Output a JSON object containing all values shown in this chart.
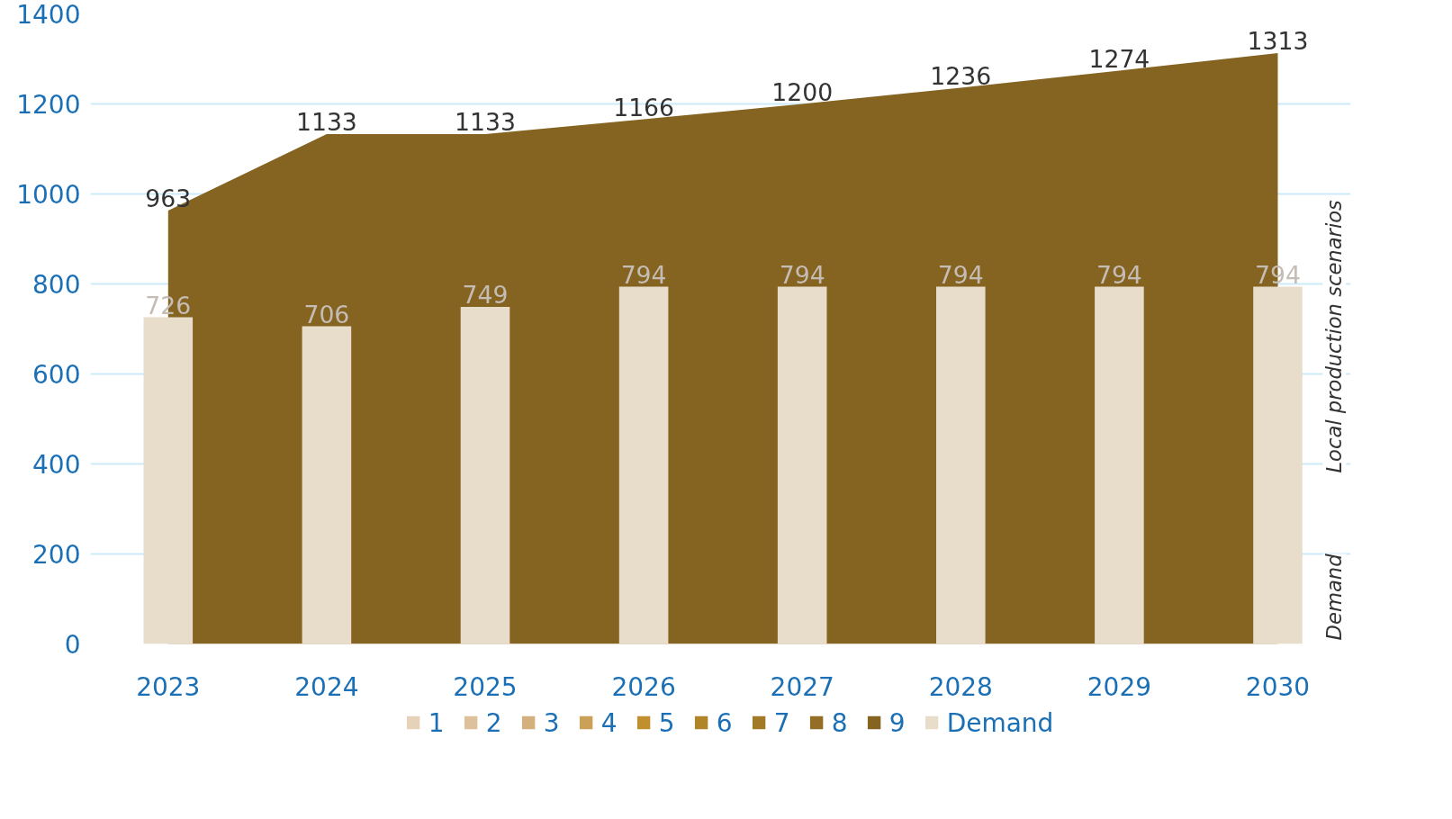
{
  "chart_data": {
    "type": "area",
    "categories": [
      "2023",
      "2024",
      "2025",
      "2026",
      "2027",
      "2028",
      "2029",
      "2030"
    ],
    "series": [
      {
        "name": "1",
        "color": "#e6d2b9",
        "values": [
          null,
          null,
          null,
          null,
          null,
          null,
          null,
          null
        ]
      },
      {
        "name": "2",
        "color": "#ddc09c",
        "values": [
          null,
          null,
          null,
          null,
          null,
          null,
          null,
          null
        ]
      },
      {
        "name": "3",
        "color": "#d4b07f",
        "values": [
          null,
          null,
          null,
          null,
          null,
          null,
          null,
          null
        ]
      },
      {
        "name": "4",
        "color": "#cba057",
        "values": [
          null,
          null,
          null,
          null,
          null,
          null,
          null,
          null
        ]
      },
      {
        "name": "5",
        "color": "#c0902e",
        "values": [
          null,
          null,
          null,
          null,
          null,
          null,
          null,
          null
        ]
      },
      {
        "name": "6",
        "color": "#b08429",
        "values": [
          null,
          null,
          null,
          null,
          null,
          null,
          null,
          null
        ]
      },
      {
        "name": "7",
        "color": "#a27a27",
        "values": [
          null,
          null,
          null,
          null,
          null,
          null,
          null,
          null
        ]
      },
      {
        "name": "8",
        "color": "#936e24",
        "values": [
          null,
          null,
          null,
          null,
          null,
          null,
          null,
          null
        ]
      },
      {
        "name": "9",
        "color": "#856421",
        "values": [
          963,
          1133,
          1133,
          1166,
          1200,
          1236,
          1274,
          1313
        ]
      },
      {
        "name": "Demand",
        "type": "bar",
        "color": "#e8dccb",
        "values": [
          726,
          706,
          749,
          794,
          794,
          794,
          794,
          794
        ]
      }
    ],
    "ylim": [
      0,
      1400
    ],
    "yticks": [
      0,
      200,
      400,
      600,
      800,
      1000,
      1200,
      1400
    ],
    "grid": "y",
    "legend": "bottom",
    "data_labels": true,
    "annotations": [
      "Local production scenarios",
      "Demand"
    ]
  }
}
